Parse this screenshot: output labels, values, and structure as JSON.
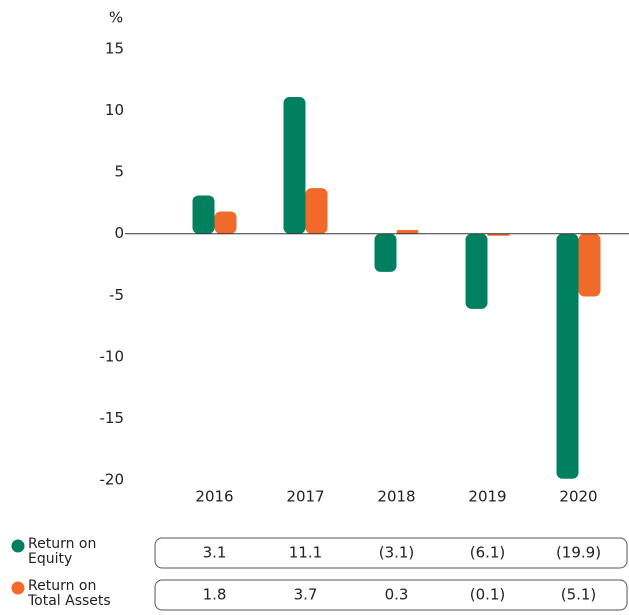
{
  "chart_data": {
    "type": "bar",
    "y_label": "%",
    "categories": [
      "2016",
      "2017",
      "2018",
      "2019",
      "2020"
    ],
    "series": [
      {
        "name": "Return on Equity",
        "color": "#00805f",
        "values": [
          3.1,
          11.1,
          -3.1,
          -6.1,
          -19.9
        ],
        "value_labels": [
          "3.1",
          "11.1",
          "(3.1)",
          "(6.1)",
          "(19.9)"
        ]
      },
      {
        "name": "Return on Total Assets",
        "color": "#f26a2a",
        "values": [
          1.8,
          3.7,
          0.3,
          -0.1,
          -5.1
        ],
        "value_labels": [
          "1.8",
          "3.7",
          "0.3",
          "(0.1)",
          "(5.1)"
        ]
      }
    ],
    "ylim": [
      -20,
      15
    ],
    "yticks": [
      -20,
      -15,
      -10,
      -5,
      0,
      5,
      10,
      15
    ]
  }
}
